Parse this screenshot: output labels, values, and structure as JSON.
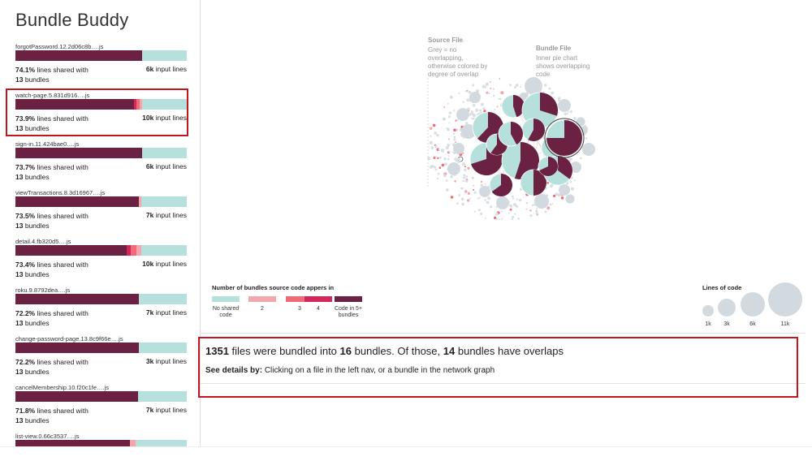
{
  "app": {
    "title": "Bundle Buddy"
  },
  "colors": {
    "none": "#b5e0db",
    "two": "#f4a6ad",
    "three": "#ef6b77",
    "four": "#d3275c",
    "five_plus": "#6b2141",
    "highlight": "#c0161f"
  },
  "files": [
    {
      "name": "forgotPassword.12.2d06c8b….js",
      "pct": "74.1%",
      "shared_text": "lines shared with",
      "bundles": "13",
      "bundles_text": "bundles",
      "lines": "6k",
      "lines_text": "input lines",
      "segments": {
        "five_plus": 0.741,
        "four": 0,
        "three": 0,
        "two": 0
      }
    },
    {
      "name": "watch-page.5.831d916….js",
      "pct": "73.9%",
      "shared_text": "lines shared with",
      "bundles": "13",
      "bundles_text": "bundles",
      "lines": "10k",
      "lines_text": "input lines",
      "segments": {
        "five_plus": 0.69,
        "four": 0.015,
        "three": 0.02,
        "two": 0.015
      }
    },
    {
      "name": "sign-in.11.424bae0….js",
      "pct": "73.7%",
      "shared_text": "lines shared with",
      "bundles": "13",
      "bundles_text": "bundles",
      "lines": "6k",
      "lines_text": "input lines",
      "segments": {
        "five_plus": 0.737,
        "four": 0,
        "three": 0,
        "two": 0
      }
    },
    {
      "name": "viewTransactions.8.3d16967….js",
      "pct": "73.5%",
      "shared_text": "lines shared with",
      "bundles": "13",
      "bundles_text": "bundles",
      "lines": "7k",
      "lines_text": "input lines",
      "segments": {
        "five_plus": 0.72,
        "four": 0,
        "three": 0,
        "two": 0.015
      }
    },
    {
      "name": "detail.4.fb320d5….js",
      "pct": "73.4%",
      "shared_text": "lines shared with",
      "bundles": "13",
      "bundles_text": "bundles",
      "lines": "10k",
      "lines_text": "input lines",
      "segments": {
        "five_plus": 0.65,
        "four": 0.025,
        "three": 0.03,
        "two": 0.029
      }
    },
    {
      "name": "roku.9.8792dea….js",
      "pct": "72.2%",
      "shared_text": "lines shared with",
      "bundles": "13",
      "bundles_text": "bundles",
      "lines": "7k",
      "lines_text": "input lines",
      "segments": {
        "five_plus": 0.722,
        "four": 0,
        "three": 0,
        "two": 0
      }
    },
    {
      "name": "change-password-page.13.8c9f66e….js",
      "pct": "72.2%",
      "shared_text": "lines shared with",
      "bundles": "13",
      "bundles_text": "bundles",
      "lines": "3k",
      "lines_text": "input lines",
      "segments": {
        "five_plus": 0.722,
        "four": 0,
        "three": 0,
        "two": 0
      }
    },
    {
      "name": "cancelMembership.10.f20c1fe….js",
      "pct": "71.8%",
      "shared_text": "lines shared with",
      "bundles": "13",
      "bundles_text": "bundles",
      "lines": "7k",
      "lines_text": "input lines",
      "segments": {
        "five_plus": 0.718,
        "four": 0,
        "three": 0,
        "two": 0
      }
    },
    {
      "name": "list-view.0.66c3537….js",
      "pct": "",
      "shared_text": "",
      "bundles": "",
      "bundles_text": "",
      "lines": "",
      "lines_text": "",
      "segments": {
        "five_plus": 0.67,
        "four": 0,
        "three": 0,
        "two": 0.03
      }
    }
  ],
  "graph": {
    "annotations": {
      "source_title": "Source File",
      "source_lines": [
        "Grey = no",
        "overlapping,",
        "otherwise colored by",
        "degree of overlap"
      ],
      "bundle_title": "Bundle File",
      "bundle_lines": [
        "Inner pie chart",
        "shows overlapping",
        "code"
      ]
    },
    "bundles": [
      {
        "share": 0.62,
        "ring": true
      },
      {
        "share": 0.45,
        "ring": true
      },
      {
        "share": 0.3,
        "ring": true
      },
      {
        "share": 0.7,
        "ring": true
      },
      {
        "share": 0.55,
        "ring": true
      },
      {
        "share": 0.4,
        "ring": true
      },
      {
        "share": 0.65,
        "ring": true
      },
      {
        "share": 0.5,
        "ring": true
      },
      {
        "share": 0.35,
        "ring": true
      },
      {
        "share": 0.6,
        "ring": true
      },
      {
        "share": 0.75,
        "ring": true
      },
      {
        "share": 0.58,
        "ring": true
      },
      {
        "share": 0.42,
        "ring": true
      },
      {
        "share": 0.68,
        "ring": true
      },
      {
        "share": 0.0,
        "ring": false
      },
      {
        "share": 0.0,
        "ring": false
      }
    ]
  },
  "legend": {
    "bundles_title": "Number of bundles source code appers in",
    "items": [
      {
        "label": "No shared code",
        "color_key": "none"
      },
      {
        "label": "2",
        "color_key": "two"
      },
      {
        "label": "3",
        "color_key": "three"
      },
      {
        "label": "4",
        "color_key": "four"
      },
      {
        "label": "Code in 5+ bundles",
        "color_key": "five_plus"
      }
    ],
    "size_title": "Lines of code",
    "sizes": [
      {
        "label": "1k"
      },
      {
        "label": "3k"
      },
      {
        "label": "6k"
      },
      {
        "label": "11k"
      }
    ]
  },
  "summary": {
    "files_count": "1351",
    "files_text": "files were bundled into",
    "bundles_count": "16",
    "bundles_text": "bundles. Of those,",
    "overlap_count": "14",
    "overlap_text": "bundles have overlaps",
    "details_label": "See details by:",
    "details_text": "Clicking on a file in the left nav, or a bundle in the network graph"
  }
}
